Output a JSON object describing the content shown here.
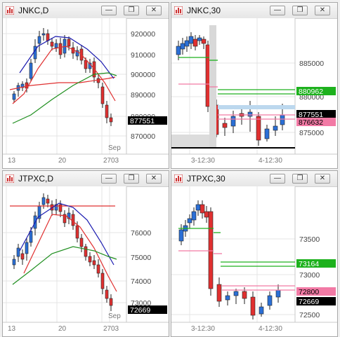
{
  "windows": [
    {
      "title": "JNKC,D",
      "y_ticks": [
        "920000",
        "910000",
        "900000",
        "890000",
        "880000",
        "870000"
      ],
      "x_ticks": [
        "13",
        "20",
        "27",
        "03"
      ],
      "month_label": "Sep",
      "price_tags": [
        {
          "text": "877551",
          "bg": "#000000",
          "fg": "#ffffff"
        }
      ]
    },
    {
      "title": "JNKC,30",
      "y_ticks": [
        "885000",
        "880000",
        "875000"
      ],
      "x_ticks": [
        "3-12:30",
        "4-12:30"
      ],
      "month_label": "",
      "price_tags": [
        {
          "text": "880962",
          "bg": "#1db11d",
          "fg": "#ffffff"
        },
        {
          "text": "877551",
          "bg": "#000000",
          "fg": "#ffffff"
        },
        {
          "text": "876632",
          "bg": "#f27aa5",
          "fg": "#000000"
        }
      ]
    },
    {
      "title": "JTPXC,D",
      "y_ticks": [
        "76000",
        "75000",
        "74000",
        "73000"
      ],
      "x_ticks": [
        "13",
        "20",
        "27",
        "03"
      ],
      "month_label": "Sep",
      "price_tags": [
        {
          "text": "72669",
          "bg": "#000000",
          "fg": "#ffffff"
        }
      ]
    },
    {
      "title": "JTPXC,30",
      "y_ticks": [
        "73500",
        "73000",
        "72500"
      ],
      "x_ticks": [
        "3-12:30",
        "4-12:30"
      ],
      "month_label": "",
      "price_tags": [
        {
          "text": "73164",
          "bg": "#1db11d",
          "fg": "#ffffff"
        },
        {
          "text": "72800",
          "bg": "#f27aa5",
          "fg": "#000000"
        },
        {
          "text": "72669",
          "bg": "#000000",
          "fg": "#ffffff"
        }
      ]
    }
  ],
  "window_buttons": {
    "minimize": "—",
    "restore": "❐",
    "close": "✕"
  },
  "colors": {
    "up": "#2b6fd6",
    "down": "#e03030",
    "green_line": "#1db11d",
    "pink_line": "#f27aa5",
    "ma_red": "#e03030",
    "ma_blue": "#1a1ab0",
    "ma_green": "#1f8f1f"
  },
  "icons": {
    "app": "chart-app-icon"
  }
}
